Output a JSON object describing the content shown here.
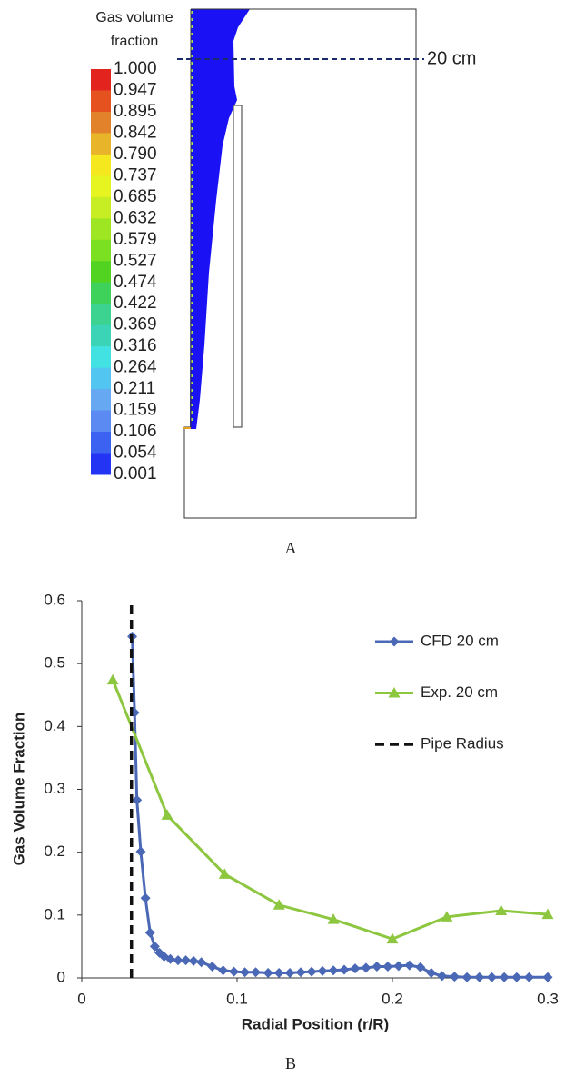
{
  "panel_a": {
    "colorbar": {
      "title": [
        "Gas volume",
        "fraction"
      ],
      "labels": [
        "1.000",
        "0.947",
        "0.895",
        "0.842",
        "0.790",
        "0.737",
        "0.685",
        "0.632",
        "0.579",
        "0.527",
        "0.474",
        "0.422",
        "0.369",
        "0.316",
        "0.264",
        "0.211",
        "0.159",
        "0.106",
        "0.054",
        "0.001"
      ],
      "colors": [
        "#e3231e",
        "#e5521f",
        "#e2822a",
        "#e8b52a",
        "#f5e81e",
        "#e6f520",
        "#c6ee22",
        "#9ee622",
        "#7bdf22",
        "#52d322",
        "#3ed25a",
        "#3cd290",
        "#3cd4b6",
        "#42e2e2",
        "#52c6f0",
        "#66a8f2",
        "#5a8af2",
        "#3c62f2",
        "#2434f4"
      ]
    },
    "annotation": "20 cm",
    "caption": "A"
  },
  "chart_data": {
    "type": "line",
    "xlabel": "Radial Position (r/R)",
    "ylabel": "Gas Volume Fraction",
    "xlim": [
      0,
      0.3
    ],
    "xticks": [
      0,
      0.1,
      0.2,
      0.3
    ],
    "ylim": [
      0,
      0.6
    ],
    "yticks": [
      0,
      0.1,
      0.2,
      0.3,
      0.4,
      0.5,
      0.6
    ],
    "legend": "upper right",
    "series": [
      {
        "name": "CFD 20 cm",
        "color": "#4a68b5",
        "marker": "diamond",
        "x": [
          0.0325,
          0.034,
          0.0355,
          0.038,
          0.041,
          0.044,
          0.047,
          0.05,
          0.053,
          0.057,
          0.062,
          0.067,
          0.072,
          0.077,
          0.084,
          0.091,
          0.098,
          0.105,
          0.112,
          0.12,
          0.127,
          0.134,
          0.141,
          0.148,
          0.155,
          0.162,
          0.169,
          0.176,
          0.183,
          0.19,
          0.197,
          0.204,
          0.211,
          0.218,
          0.225,
          0.232,
          0.24,
          0.248,
          0.256,
          0.264,
          0.272,
          0.28,
          0.288,
          0.3
        ],
        "values": [
          0.543,
          0.422,
          0.283,
          0.201,
          0.127,
          0.072,
          0.05,
          0.04,
          0.034,
          0.03,
          0.028,
          0.028,
          0.027,
          0.025,
          0.018,
          0.012,
          0.01,
          0.009,
          0.009,
          0.008,
          0.008,
          0.008,
          0.009,
          0.01,
          0.011,
          0.012,
          0.013,
          0.015,
          0.016,
          0.018,
          0.018,
          0.019,
          0.02,
          0.017,
          0.008,
          0.003,
          0.002,
          0.001,
          0.001,
          0.001,
          0.001,
          0.001,
          0.001,
          0.001
        ]
      },
      {
        "name": "Exp. 20 cm",
        "color": "#8dc63f",
        "marker": "triangle",
        "x": [
          0.02,
          0.055,
          0.092,
          0.127,
          0.162,
          0.2,
          0.235,
          0.27,
          0.3
        ],
        "values": [
          0.474,
          0.259,
          0.165,
          0.116,
          0.093,
          0.062,
          0.097,
          0.107,
          0.101
        ]
      },
      {
        "name": "Pipe Radius",
        "color": "#111111",
        "marker": "none",
        "dash": true,
        "x": [
          0.032,
          0.032
        ],
        "values": [
          0,
          0.6
        ]
      }
    ],
    "caption": "B"
  }
}
